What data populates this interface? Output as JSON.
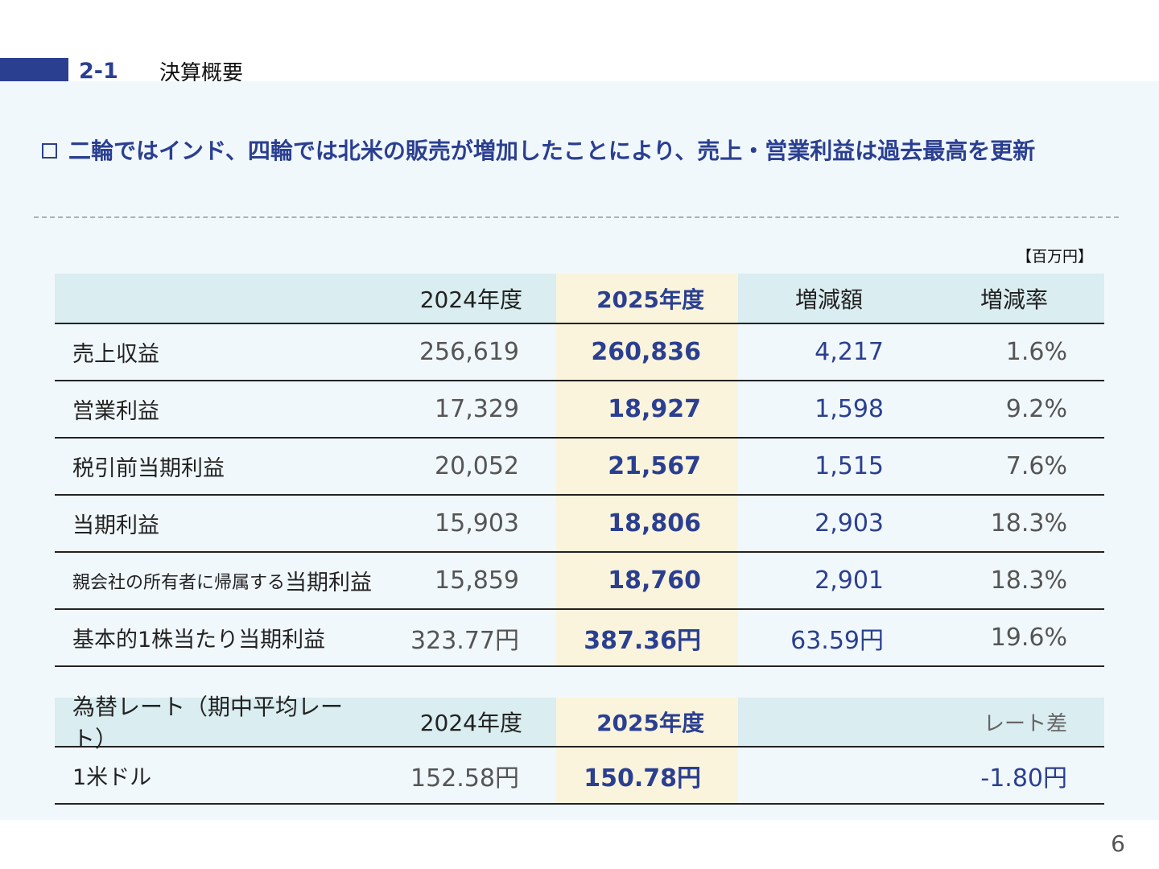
{
  "section": {
    "number": "2-1",
    "title": "決算概要"
  },
  "headline": "二輪ではインド、四輪では北米の販売が増加したことにより、売上・営業利益は過去最高を更新",
  "unit": "【百万円】",
  "results_table": {
    "headers": {
      "label": "",
      "y2024": "2024年度",
      "y2025": "2025年度",
      "diff": "増減額",
      "rate": "増減率"
    },
    "rows": [
      {
        "label": "売上収益",
        "y2024": "256,619",
        "y2025": "260,836",
        "diff": "4,217",
        "rate": "1.6%"
      },
      {
        "label": "営業利益",
        "y2024": "17,329",
        "y2025": "18,927",
        "diff": "1,598",
        "rate": "9.2%"
      },
      {
        "label": "税引前当期利益",
        "y2024": "20,052",
        "y2025": "21,567",
        "diff": "1,515",
        "rate": "7.6%"
      },
      {
        "label": "当期利益",
        "y2024": "15,903",
        "y2025": "18,806",
        "diff": "2,903",
        "rate": "18.3%"
      },
      {
        "label_small": "親会社の所有者に帰属する",
        "label_big": "当期利益",
        "y2024": "15,859",
        "y2025": "18,760",
        "diff": "2,901",
        "rate": "18.3%"
      },
      {
        "label": "基本的1株当たり当期利益",
        "y2024": "323.77円",
        "y2025": "387.36円",
        "diff": "63.59円",
        "rate": "19.6%"
      }
    ]
  },
  "fx_table": {
    "headers": {
      "label": "為替レート（期中平均レート）",
      "y2024": "2024年度",
      "y2025": "2025年度",
      "rate_diff": "レート差"
    },
    "rows": [
      {
        "label": "1米ドル",
        "y2024": "152.58円",
        "y2025": "150.78円",
        "rate_diff": "-1.80円"
      }
    ]
  },
  "page_number": "6",
  "colors": {
    "accent": "#2b3f91",
    "panel_bg": "#f1f8fc",
    "header_bg": "#daedf0",
    "highlight_bg": "#faf4dc"
  }
}
